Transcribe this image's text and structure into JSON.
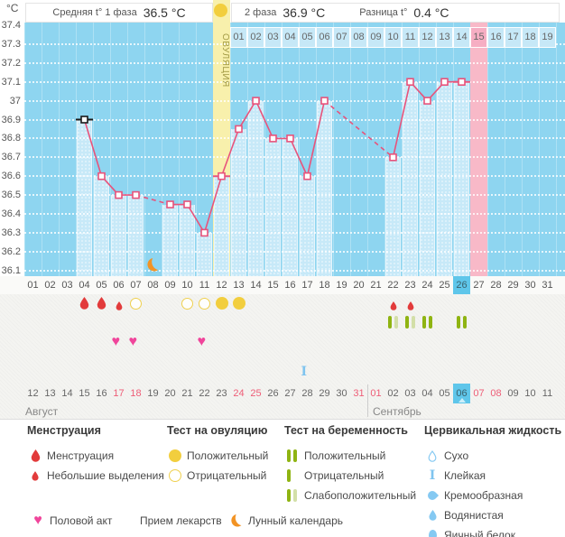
{
  "header": {
    "unit": "°C",
    "avg_phase1_label": "Средняя t° 1 фаза",
    "avg_phase1_value": "36.5 °C",
    "phase2_label": "2 фаза",
    "phase2_value": "36.9 °C",
    "diff_label": "Разница t°",
    "diff_value": "0.4 °C"
  },
  "colors": {
    "line": "#E8537B",
    "first_marker": "#1A1A1A",
    "chart_bg": "#8ED5F0",
    "bar": "#C7E9F8",
    "ovulation_column": "#F8F0AC",
    "period_column": "#F8B9C8",
    "dpo_cell": "#C6E8F7",
    "dpo_cell_highlight": "#F6AEC3",
    "opk_yellow": "#F2CE3E",
    "menses_red": "#E23B3B",
    "preg_dark": "#8FB412",
    "preg_light": "#D3DFA8",
    "heart_pink": "#F0459B",
    "cervical_blue": "#85C9F2",
    "highlight_blue": "#5FC6EA",
    "weekend_red": "#EE5D77",
    "moon_orange": "#F29324"
  },
  "chart_data": {
    "type": "line",
    "ylabel": "°C",
    "ylim": [
      36.1,
      37.4
    ],
    "y_ticks": [
      "37.4",
      "37.3",
      "37.2",
      "37.1",
      "37",
      "36.9",
      "36.8",
      "36.7",
      "36.6",
      "36.5",
      "36.4",
      "36.3",
      "36.2",
      "36.1"
    ],
    "x_days": [
      "01",
      "02",
      "03",
      "04",
      "05",
      "06",
      "07",
      "08",
      "09",
      "10",
      "11",
      "12",
      "13",
      "14",
      "15",
      "16",
      "17",
      "18",
      "19",
      "20",
      "21",
      "22",
      "23",
      "24",
      "25",
      "26",
      "27",
      "28",
      "29",
      "30",
      "31"
    ],
    "series": [
      {
        "name": "basal-temperature",
        "points": [
          {
            "day": 4,
            "temp": 36.9
          },
          {
            "day": 5,
            "temp": 36.6
          },
          {
            "day": 6,
            "temp": 36.5
          },
          {
            "day": 7,
            "temp": 36.5
          },
          {
            "day": 9,
            "temp": 36.45
          },
          {
            "day": 10,
            "temp": 36.45
          },
          {
            "day": 11,
            "temp": 36.3
          },
          {
            "day": 12,
            "temp": 36.6
          },
          {
            "day": 13,
            "temp": 36.85
          },
          {
            "day": 14,
            "temp": 37.0
          },
          {
            "day": 15,
            "temp": 36.8
          },
          {
            "day": 16,
            "temp": 36.8
          },
          {
            "day": 17,
            "temp": 36.6
          },
          {
            "day": 18,
            "temp": 37.0
          },
          {
            "day": 22,
            "temp": 36.7
          },
          {
            "day": 23,
            "temp": 37.1
          },
          {
            "day": 24,
            "temp": 37.0
          },
          {
            "day": 25,
            "temp": 37.1
          },
          {
            "day": 26,
            "temp": 37.1
          }
        ]
      }
    ],
    "no_data_days": [
      8,
      19,
      20,
      21
    ],
    "dashed_gaps": [
      [
        7,
        9
      ],
      [
        18,
        22
      ]
    ],
    "ovulation_day": 12,
    "ovulation_label": "ОВУЛЯЦИЯ",
    "expected_period_day": 27,
    "today_day": 26,
    "moon_day": 8,
    "first_point_marker_day": 4,
    "hline_marker_days": [
      12,
      26
    ],
    "dpo_row": {
      "start_cycle_day": 13,
      "labels": [
        "01",
        "02",
        "03",
        "04",
        "05",
        "06",
        "07",
        "08",
        "09",
        "10",
        "11",
        "12",
        "13",
        "14",
        "15",
        "16",
        "17",
        "18",
        "19"
      ],
      "highlighted_label": "15"
    }
  },
  "events": {
    "menstruation": [
      {
        "day": 4,
        "size": "large"
      },
      {
        "day": 5,
        "size": "large"
      },
      {
        "day": 6,
        "size": "small"
      },
      {
        "day": 22,
        "size": "small"
      },
      {
        "day": 23,
        "size": "small"
      }
    ],
    "ovulation_tests": [
      {
        "day": 7,
        "result": "negative"
      },
      {
        "day": 10,
        "result": "negative"
      },
      {
        "day": 11,
        "result": "negative"
      },
      {
        "day": 12,
        "result": "positive"
      },
      {
        "day": 13,
        "result": "positive"
      }
    ],
    "pregnancy_tests": [
      {
        "day": 22,
        "result": "weak_positive"
      },
      {
        "day": 23,
        "result": "weak_positive"
      },
      {
        "day": 24,
        "result": "positive"
      },
      {
        "day": 26,
        "result": "positive"
      }
    ],
    "intercourse_days": [
      6,
      7,
      11
    ],
    "cervical_fluid": [
      {
        "day": 17,
        "type": "sticky"
      }
    ]
  },
  "calendar": {
    "day_numbers": [
      "01",
      "02",
      "03",
      "04",
      "05",
      "06",
      "07",
      "08",
      "09",
      "10",
      "11",
      "12",
      "13",
      "14",
      "15",
      "16",
      "17",
      "18",
      "19",
      "20",
      "21",
      "22",
      "23",
      "24",
      "25",
      "26",
      "27",
      "28",
      "29",
      "30",
      "31"
    ],
    "today_index": 25,
    "dates": [
      "12",
      "13",
      "14",
      "15",
      "16",
      "17",
      "18",
      "19",
      "20",
      "21",
      "22",
      "23",
      "24",
      "25",
      "26",
      "27",
      "28",
      "29",
      "30",
      "31",
      "01",
      "02",
      "03",
      "04",
      "05",
      "06",
      "07",
      "08",
      "09",
      "10",
      "11"
    ],
    "red_indexes": [
      5,
      6,
      12,
      13,
      19,
      20,
      26,
      27
    ],
    "today_date_index": 25,
    "month_left": "Август",
    "month_right": "Сентябрь",
    "month_divider_index": 20
  },
  "legend": {
    "menstruation": {
      "title": "Менструация",
      "items": [
        {
          "label": "Менструация"
        },
        {
          "label": "Небольшие выделения"
        }
      ]
    },
    "ovulation_test": {
      "title": "Тест на овуляцию",
      "items": [
        {
          "label": "Положительный"
        },
        {
          "label": "Отрицательный"
        }
      ]
    },
    "pregnancy_test": {
      "title": "Тест на беременность",
      "items": [
        {
          "label": "Положительный"
        },
        {
          "label": "Отрицательный"
        },
        {
          "label": "Слабоположительный"
        }
      ]
    },
    "cervical": {
      "title": "Цервикальная жидкость",
      "items": [
        {
          "label": "Сухо"
        },
        {
          "label": "Клейкая"
        },
        {
          "label": "Кремообразная"
        },
        {
          "label": "Водянистая"
        },
        {
          "label": "Яичный белок"
        }
      ]
    },
    "misc": [
      {
        "label": "Половой акт"
      },
      {
        "label": "Прием лекарств"
      },
      {
        "label": "Лунный календарь"
      }
    ]
  }
}
